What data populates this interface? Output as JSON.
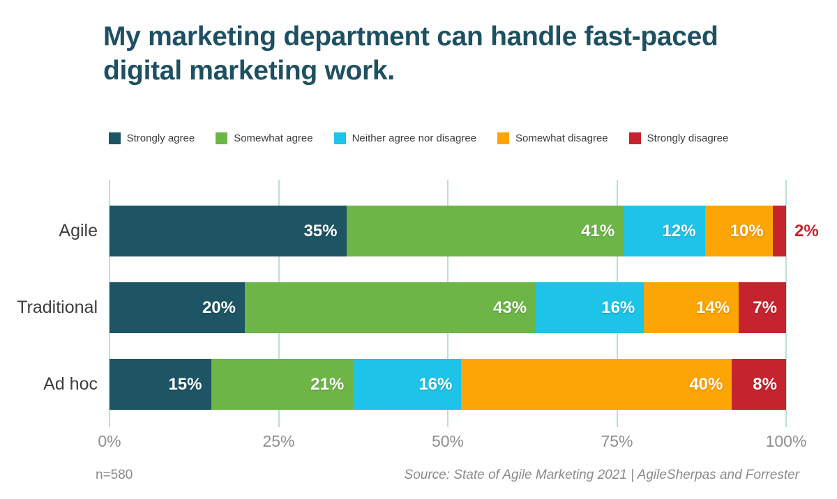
{
  "title": {
    "line1": "My marketing department can handle fast-paced",
    "line2": "digital marketing work."
  },
  "chart_data": {
    "type": "bar",
    "stacked": true,
    "orientation": "horizontal",
    "title": "My marketing department can handle fast-paced digital marketing work.",
    "categories": [
      "Agile",
      "Traditional",
      "Ad hoc"
    ],
    "series": [
      {
        "name": "Strongly agree",
        "color": "#1d5565",
        "values": [
          35,
          20,
          15
        ]
      },
      {
        "name": "Somewhat agree",
        "color": "#6eb548",
        "values": [
          41,
          43,
          21
        ]
      },
      {
        "name": "Neither agree nor disagree",
        "color": "#1ec3e8",
        "values": [
          12,
          16,
          16
        ]
      },
      {
        "name": "Somewhat disagree",
        "color": "#fca504",
        "values": [
          10,
          14,
          40
        ]
      },
      {
        "name": "Strongly disagree",
        "color": "#c5242f",
        "values": [
          2,
          7,
          8
        ]
      }
    ],
    "x_ticks": [
      "0%",
      "25%",
      "50%",
      "75%",
      "100%"
    ],
    "xlim": [
      0,
      100
    ],
    "value_suffix": "%",
    "grid": true,
    "gridline_color": "#bcdfd6",
    "legend_position": "top-center",
    "value_labels": "inside-right-white, outside in series color when segment too narrow"
  },
  "footer": {
    "n_label": "n=580",
    "source": "Source: State of Agile Marketing 2021 | AgileSherpas and Forrester"
  },
  "colors": {
    "background": "#ffffff",
    "title_text": "#1e5061",
    "category_label": "#3d3d3d",
    "legend_text": "#3c3c3c",
    "tick_label": "#8e8e8e",
    "footer_text": "#8a8a8a",
    "gridline": "#bcdfd6"
  }
}
